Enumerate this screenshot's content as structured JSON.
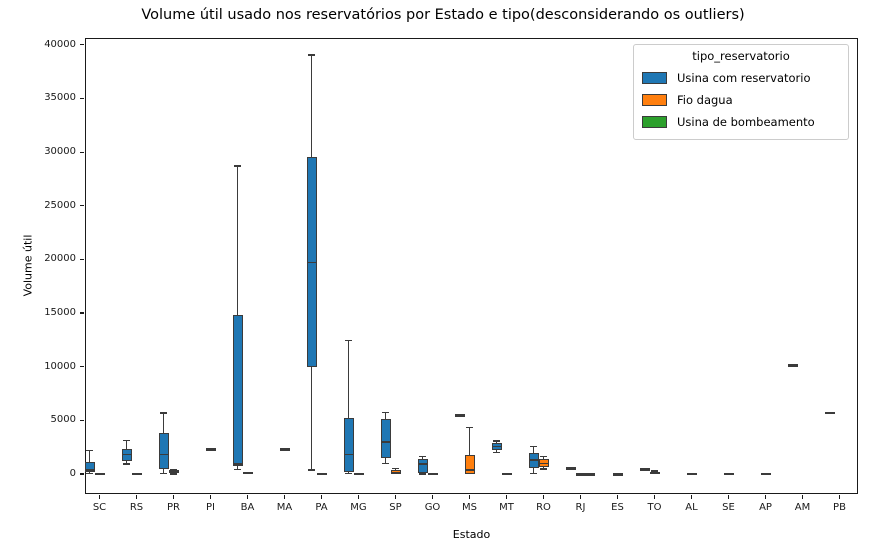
{
  "title": "Volume útil usado nos reservatórios por Estado e tipo(desconsiderando os outliers)",
  "axes": {
    "xlabel": "Estado",
    "ylabel": "Volume útil",
    "yticks": [
      0,
      5000,
      10000,
      15000,
      20000,
      25000,
      30000,
      35000,
      40000
    ]
  },
  "legend": {
    "title": "tipo_reservatorio",
    "entries": [
      {
        "label": "Usina com reservatorio",
        "color": "#1f77b4"
      },
      {
        "label": "Fio dagua",
        "color": "#ff7f0e"
      },
      {
        "label": "Usina de bombeamento",
        "color": "#2ca02c"
      }
    ]
  },
  "chart_data": {
    "type": "box",
    "title": "Volume útil usado nos reservatórios por Estado e tipo(desconsiderando os outliers)",
    "xlabel": "Estado",
    "ylabel": "Volume útil",
    "hue": "tipo_reservatorio",
    "grid": false,
    "legend_position": "upper right",
    "ylim": [
      -1864,
      40635
    ],
    "categories": [
      "SC",
      "RS",
      "PR",
      "PI",
      "BA",
      "MA",
      "PA",
      "MG",
      "SP",
      "GO",
      "MS",
      "MT",
      "RO",
      "RJ",
      "ES",
      "TO",
      "AL",
      "SE",
      "AP",
      "AM",
      "PB"
    ],
    "series": [
      {
        "name": "Usina com reservatorio",
        "color": "#1f77b4"
      },
      {
        "name": "Fio dagua",
        "color": "#ff7f0e"
      },
      {
        "name": "Usina de bombeamento",
        "color": "#2ca02c"
      }
    ],
    "boxes": [
      {
        "state": "SC",
        "tipo": "Usina com reservatorio",
        "lo": 65,
        "q1": 150,
        "med": 400,
        "q3": 1100,
        "hi": 2200
      },
      {
        "state": "SC",
        "tipo": "Fio dagua",
        "lo": 0,
        "q1": 0,
        "med": 40,
        "q3": 90,
        "hi": 130
      },
      {
        "state": "RS",
        "tipo": "Usina com reservatorio",
        "lo": 930,
        "q1": 1240,
        "med": 1800,
        "q3": 2360,
        "hi": 3105
      },
      {
        "state": "RS",
        "tipo": "Fio dagua",
        "lo": 0,
        "q1": 0,
        "med": 30,
        "q3": 60,
        "hi": 90
      },
      {
        "state": "PR",
        "tipo": "Usina com reservatorio",
        "lo": 60,
        "q1": 460,
        "med": 1835,
        "q3": 3790,
        "hi": 5700
      },
      {
        "state": "PR",
        "tipo": "Fio dagua",
        "lo": 0,
        "q1": 60,
        "med": 185,
        "q3": 345,
        "hi": 430
      },
      {
        "state": "PI",
        "tipo": "Fio dagua",
        "lo": 2290,
        "q1": 2310,
        "med": 2330,
        "q3": 2350,
        "hi": 2370
      },
      {
        "state": "BA",
        "tipo": "Usina com reservatorio",
        "lo": 440,
        "q1": 775,
        "med": 905,
        "q3": 14820,
        "hi": 28700
      },
      {
        "state": "BA",
        "tipo": "Fio dagua",
        "lo": 0,
        "q1": 30,
        "med": 90,
        "q3": 180,
        "hi": 215
      },
      {
        "state": "MA",
        "tipo": "Fio dagua",
        "lo": 2290,
        "q1": 2310,
        "med": 2330,
        "q3": 2350,
        "hi": 2370
      },
      {
        "state": "PA",
        "tipo": "Usina com reservatorio",
        "lo": 370,
        "q1": 10000,
        "med": 19730,
        "q3": 29520,
        "hi": 39050
      },
      {
        "state": "PA",
        "tipo": "Fio dagua",
        "lo": 0,
        "q1": 0,
        "med": 30,
        "q3": 70,
        "hi": 100
      },
      {
        "state": "MG",
        "tipo": "Usina com reservatorio",
        "lo": 45,
        "q1": 215,
        "med": 1835,
        "q3": 5190,
        "hi": 12425
      },
      {
        "state": "MG",
        "tipo": "Fio dagua",
        "lo": 0,
        "q1": 0,
        "med": 35,
        "q3": 80,
        "hi": 110
      },
      {
        "state": "SP",
        "tipo": "Usina com reservatorio",
        "lo": 995,
        "q1": 1465,
        "med": 2955,
        "q3": 5100,
        "hi": 5715
      },
      {
        "state": "SP",
        "tipo": "Fio dagua",
        "lo": 0,
        "q1": 20,
        "med": 150,
        "q3": 370,
        "hi": 530
      },
      {
        "state": "GO",
        "tipo": "Usina com reservatorio",
        "lo": 0,
        "q1": 65,
        "med": 930,
        "q3": 1370,
        "hi": 1610
      },
      {
        "state": "GO",
        "tipo": "Fio dagua",
        "lo": 0,
        "q1": 0,
        "med": 30,
        "q3": 70,
        "hi": 100
      },
      {
        "state": "MS",
        "tipo": "Usina com reservatorio",
        "lo": 5460,
        "q1": 5480,
        "med": 5500,
        "q3": 5520,
        "hi": 5540
      },
      {
        "state": "MS",
        "tipo": "Fio dagua",
        "lo": 0,
        "q1": 0,
        "med": 370,
        "q3": 1770,
        "hi": 4315
      },
      {
        "state": "MT",
        "tipo": "Usina com reservatorio",
        "lo": 2020,
        "q1": 2235,
        "med": 2545,
        "q3": 2860,
        "hi": 3075
      },
      {
        "state": "MT",
        "tipo": "Fio dagua",
        "lo": 0,
        "q1": 0,
        "med": 30,
        "q3": 60,
        "hi": 90
      },
      {
        "state": "RO",
        "tipo": "Usina com reservatorio",
        "lo": 65,
        "q1": 530,
        "med": 1305,
        "q3": 1930,
        "hi": 2545
      },
      {
        "state": "RO",
        "tipo": "Fio dagua",
        "lo": 465,
        "q1": 680,
        "med": 995,
        "q3": 1400,
        "hi": 1610
      },
      {
        "state": "RJ",
        "tipo": "Usina com reservatorio",
        "lo": 545,
        "q1": 555,
        "med": 570,
        "q3": 585,
        "hi": 595
      },
      {
        "state": "RJ",
        "tipo": "Fio dagua",
        "lo": 0,
        "q1": 5,
        "med": 20,
        "q3": 40,
        "hi": 55
      },
      {
        "state": "RJ",
        "tipo": "Usina de bombeamento",
        "lo": 0,
        "q1": 5,
        "med": 20,
        "q3": 40,
        "hi": 55
      },
      {
        "state": "ES",
        "tipo": "Fio dagua",
        "lo": 0,
        "q1": 10,
        "med": 25,
        "q3": 45,
        "hi": 60
      },
      {
        "state": "TO",
        "tipo": "Usina com reservatorio",
        "lo": 430,
        "q1": 450,
        "med": 480,
        "q3": 510,
        "hi": 530
      },
      {
        "state": "TO",
        "tipo": "Fio dagua",
        "lo": 0,
        "q1": 20,
        "med": 100,
        "q3": 215,
        "hi": 280
      },
      {
        "state": "AL",
        "tipo": "Fio dagua",
        "lo": 0,
        "q1": 10,
        "med": 60,
        "q3": 130,
        "hi": 160
      },
      {
        "state": "SE",
        "tipo": "Fio dagua",
        "lo": 30,
        "q1": 45,
        "med": 65,
        "q3": 85,
        "hi": 100
      },
      {
        "state": "AP",
        "tipo": "Fio dagua",
        "lo": 0,
        "q1": 10,
        "med": 30,
        "q3": 50,
        "hi": 70
      },
      {
        "state": "AM",
        "tipo": "Usina com reservatorio",
        "lo": 10120,
        "q1": 10140,
        "med": 10160,
        "q3": 10180,
        "hi": 10200
      },
      {
        "state": "PB",
        "tipo": "Usina com reservatorio",
        "lo": 5710,
        "q1": 5730,
        "med": 5750,
        "q3": 5770,
        "hi": 5790
      }
    ]
  }
}
